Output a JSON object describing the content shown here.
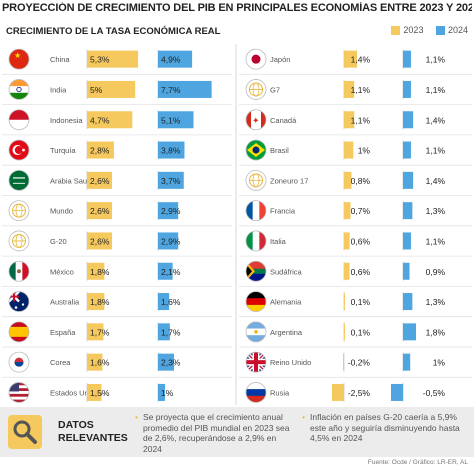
{
  "header": {
    "title": "PROYECCIÓN DE CRECIMIENTO DEL PIB EN PRINCIPALES ECONOMÍAS ENTRE 2023 Y 2024",
    "subtitle": "CRECIMIENTO DE LA TASA ECONÓMICA REAL"
  },
  "colors": {
    "y2023": "#f5c95e",
    "y2024": "#4ea5df",
    "accent": "#e8b93e"
  },
  "chart_data": {
    "type": "bar",
    "series": [
      {
        "name": "2023"
      },
      {
        "name": "2024"
      }
    ],
    "rows": [
      {
        "country": "China",
        "flag": "china-flag",
        "v2023": 5.3,
        "l2023": "5,3%",
        "v2024": 4.9,
        "l2024": "4,9%"
      },
      {
        "country": "India",
        "flag": "india-flag",
        "v2023": 5.0,
        "l2023": "5%",
        "v2024": 7.7,
        "l2024": "7,7%"
      },
      {
        "country": "Indonesia",
        "flag": "indonesia-flag",
        "v2023": 4.7,
        "l2023": "4,7%",
        "v2024": 5.1,
        "l2024": "5,1%"
      },
      {
        "country": "Turquía",
        "flag": "turkey-flag",
        "v2023": 2.8,
        "l2023": "2,8%",
        "v2024": 3.8,
        "l2024": "3,8%"
      },
      {
        "country": "Arabia Saudita",
        "flag": "saudi-arabia-flag",
        "v2023": 2.6,
        "l2023": "2,6%",
        "v2024": 3.7,
        "l2024": "3,7%"
      },
      {
        "country": "Mundo",
        "flag": "globe-icon",
        "v2023": 2.6,
        "l2023": "2,6%",
        "v2024": 2.9,
        "l2024": "2,9%"
      },
      {
        "country": "G-20",
        "flag": "globe-icon",
        "v2023": 2.6,
        "l2023": "2,6%",
        "v2024": 2.9,
        "l2024": "2,9%"
      },
      {
        "country": "México",
        "flag": "mexico-flag",
        "v2023": 1.8,
        "l2023": "1,8%",
        "v2024": 2.1,
        "l2024": "2,1%"
      },
      {
        "country": "Australia",
        "flag": "australia-flag",
        "v2023": 1.8,
        "l2023": "1,8%",
        "v2024": 1.6,
        "l2024": "1,6%"
      },
      {
        "country": "España",
        "flag": "spain-flag",
        "v2023": 1.7,
        "l2023": "1,7%",
        "v2024": 1.7,
        "l2024": "1,7%"
      },
      {
        "country": "Corea",
        "flag": "korea-flag",
        "v2023": 1.6,
        "l2023": "1,6%",
        "v2024": 2.3,
        "l2024": "2,3%"
      },
      {
        "country": "Estados Unidos",
        "flag": "usa-flag",
        "v2023": 1.5,
        "l2023": "1,5%",
        "v2024": 1.0,
        "l2024": "1%"
      },
      {
        "country": "Japón",
        "flag": "japan-flag",
        "v2023": 1.4,
        "l2023": "1,4%",
        "v2024": 1.1,
        "l2024": "1,1%"
      },
      {
        "country": "G7",
        "flag": "globe-icon",
        "v2023": 1.1,
        "l2023": "1,1%",
        "v2024": 1.1,
        "l2024": "1,1%"
      },
      {
        "country": "Canadá",
        "flag": "canada-flag",
        "v2023": 1.1,
        "l2023": "1,1%",
        "v2024": 1.4,
        "l2024": "1,4%"
      },
      {
        "country": "Brasil",
        "flag": "brazil-flag",
        "v2023": 1.0,
        "l2023": "1%",
        "v2024": 1.1,
        "l2024": "1,1%"
      },
      {
        "country": "Zoneuro 17",
        "flag": "globe-icon",
        "v2023": 0.8,
        "l2023": "0,8%",
        "v2024": 1.4,
        "l2024": "1,4%"
      },
      {
        "country": "Francia",
        "flag": "france-flag",
        "v2023": 0.7,
        "l2023": "0,7%",
        "v2024": 1.3,
        "l2024": "1,3%"
      },
      {
        "country": "Italia",
        "flag": "italy-flag",
        "v2023": 0.6,
        "l2023": "0,6%",
        "v2024": 1.1,
        "l2024": "1,1%"
      },
      {
        "country": "Sudáfrica",
        "flag": "south-africa-flag",
        "v2023": 0.6,
        "l2023": "0,6%",
        "v2024": 0.9,
        "l2024": "0,9%"
      },
      {
        "country": "Alemania",
        "flag": "germany-flag",
        "v2023": 0.1,
        "l2023": "0,1%",
        "v2024": 1.3,
        "l2024": "1,3%"
      },
      {
        "country": "Argentina",
        "flag": "argentina-flag",
        "v2023": 0.1,
        "l2023": "0,1%",
        "v2024": 1.8,
        "l2024": "1,8%"
      },
      {
        "country": "Reino Unido",
        "flag": "uk-flag",
        "v2023": -0.2,
        "l2023": "-0,2%",
        "v2024": 1.0,
        "l2024": "1%"
      },
      {
        "country": "Rusia",
        "flag": "russia-flag",
        "v2023": -2.5,
        "l2023": "-2,5%",
        "v2024": -0.5,
        "l2024": "-0,5%"
      }
    ]
  },
  "relevant": {
    "label": "DATOS RELEVANTES",
    "icon": "magnifier-icon",
    "notes": [
      "Se proyecta que el crecimiento anual promedio del PIB mundial en 2023 sea de 2,6%, recuperándose a 2,9% en 2024",
      "Inflación en países G-20 caería a 5,9% este año y seguiría disminuyendo hasta 4,5% en 2024"
    ]
  },
  "source": "Fuente: Ocde / Gráfico: LR-ER, AL"
}
